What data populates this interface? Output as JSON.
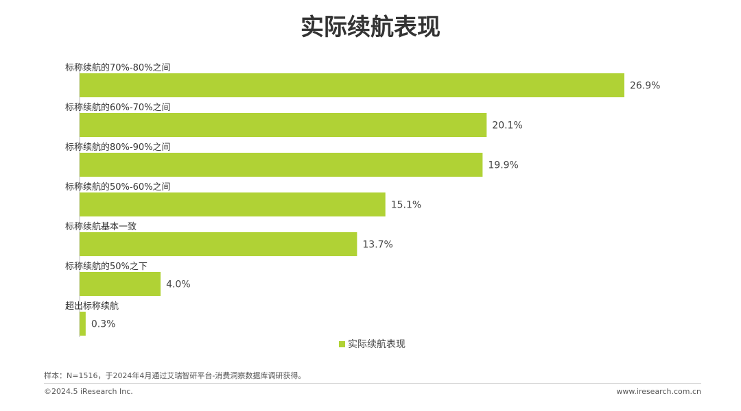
{
  "title": "实际续航表现",
  "chart_data": {
    "type": "bar",
    "orientation": "horizontal",
    "categories": [
      "标称续航的70%-80%之间",
      "标称续航的60%-70%之间",
      "标称续航的80%-90%之间",
      "标称续航的50%-60%之间",
      "标称续航基本一致",
      "标称续航的50%之下",
      "超出标称续航"
    ],
    "values": [
      26.9,
      20.1,
      19.9,
      15.1,
      13.7,
      4.0,
      0.3
    ],
    "value_labels": [
      "26.9%",
      "20.1%",
      "19.9%",
      "15.1%",
      "13.7%",
      "4.0%",
      "0.3%"
    ],
    "series": [
      {
        "name": "实际续航表现"
      }
    ],
    "legend_position": "bottom",
    "grid": false,
    "xlim": [
      0,
      30
    ],
    "color": "#b0d235"
  },
  "legend": {
    "label": "实际续航表现"
  },
  "footer": {
    "note": "样本：N=1516，于2024年4月通过艾瑞智研平台-消费洞察数据库调研获得。",
    "copyright": "©2024.5 iResearch Inc.",
    "site": "www.iresearch.com.cn"
  }
}
